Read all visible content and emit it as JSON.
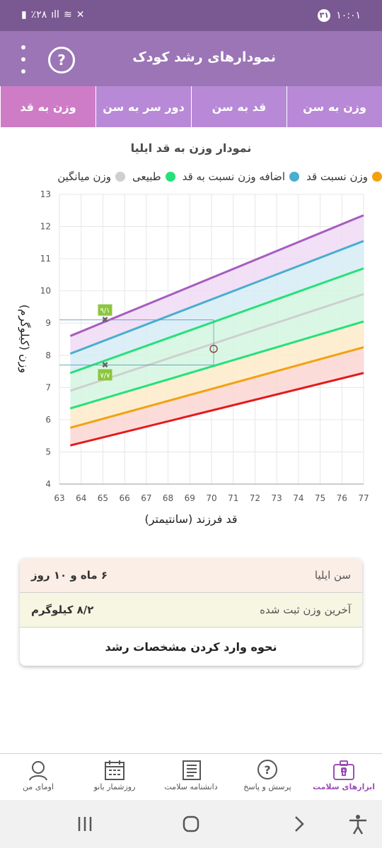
{
  "status_bar": {
    "time": "۱۰:۰۱",
    "notif_count": "۳۱",
    "battery": "٪۲۸"
  },
  "app_bar": {
    "title": "نمودارهای رشد کودک",
    "help_label": "?"
  },
  "tabs": [
    {
      "label": "وزن به سن"
    },
    {
      "label": "قد به سن"
    },
    {
      "label": "دور سر به سن"
    },
    {
      "label": "وزن به قد"
    }
  ],
  "active_tab_index": 3,
  "chart_title": "نمودار وزن به قد ایلیا",
  "legend": [
    {
      "label": "وزن میانگین",
      "color": "#cfcfcf"
    },
    {
      "label": "طبیعی",
      "color": "#27e07a"
    },
    {
      "label": "اضافه وزن نسبت به قد",
      "color": "#49aed0"
    },
    {
      "label": "وزن نسبت قد",
      "color": "#f2a20f"
    }
  ],
  "chart_data": {
    "type": "line",
    "xlabel": "قد فرزند (سانتیمتر)",
    "ylabel": "وزن (کیلوگرم)",
    "xlim": [
      63,
      77
    ],
    "ylim": [
      4,
      13
    ],
    "x_ticks": [
      63,
      64,
      65,
      66,
      67,
      68,
      69,
      70,
      71,
      72,
      73,
      74,
      75,
      76,
      77
    ],
    "y_ticks": [
      4,
      5,
      6,
      7,
      8,
      9,
      10,
      11,
      12,
      13
    ],
    "grid": true,
    "legend_position": "top",
    "series": [
      {
        "color": "#e31a1c",
        "x": [
          63.5,
          77
        ],
        "y": [
          5.2,
          7.45
        ]
      },
      {
        "color": "#f2a20f",
        "x": [
          63.5,
          77
        ],
        "y": [
          5.75,
          8.25
        ]
      },
      {
        "color": "#27e07a",
        "x": [
          63.5,
          77
        ],
        "y": [
          6.35,
          9.05
        ]
      },
      {
        "color": "#cfcfcf",
        "x": [
          63.5,
          77
        ],
        "y": [
          6.9,
          9.9
        ]
      },
      {
        "color": "#27e07a",
        "x": [
          63.5,
          77
        ],
        "y": [
          7.45,
          10.7
        ]
      },
      {
        "color": "#49aed0",
        "x": [
          63.5,
          77
        ],
        "y": [
          8.05,
          11.55
        ]
      },
      {
        "color": "#a85cc0",
        "x": [
          63.5,
          77
        ],
        "y": [
          8.6,
          12.35
        ]
      }
    ],
    "markers": [
      {
        "x": 65.1,
        "y": 9.1,
        "label": "۹/۱"
      },
      {
        "x": 65.1,
        "y": 7.7,
        "label": "۷/۷"
      }
    ],
    "current_point": {
      "x": 70.1,
      "y": 8.2
    }
  },
  "info": {
    "age_label": "سن ایلیا",
    "age_value": "۶ ماه و ۱۰ روز",
    "weight_label": "آخرین وزن ثبت شده",
    "weight_value": "۸/۲ کیلوگرم",
    "howto_label": "نحوه وارد کردن مشخصات رشد"
  },
  "bottom_nav": [
    {
      "label": "ابزارهای سلامت",
      "icon": "medical-kit-icon"
    },
    {
      "label": "پرسش و پاسخ",
      "icon": "question-icon"
    },
    {
      "label": "دانشنامه سلامت",
      "icon": "newspaper-icon"
    },
    {
      "label": "روزشمار بانو",
      "icon": "calendar-icon"
    },
    {
      "label": "اومای من",
      "icon": "avatar-icon"
    }
  ],
  "colors": {
    "primary": "#9b75b5",
    "active_tab": "#cf7cc7",
    "accent": "#9b4fb5"
  }
}
